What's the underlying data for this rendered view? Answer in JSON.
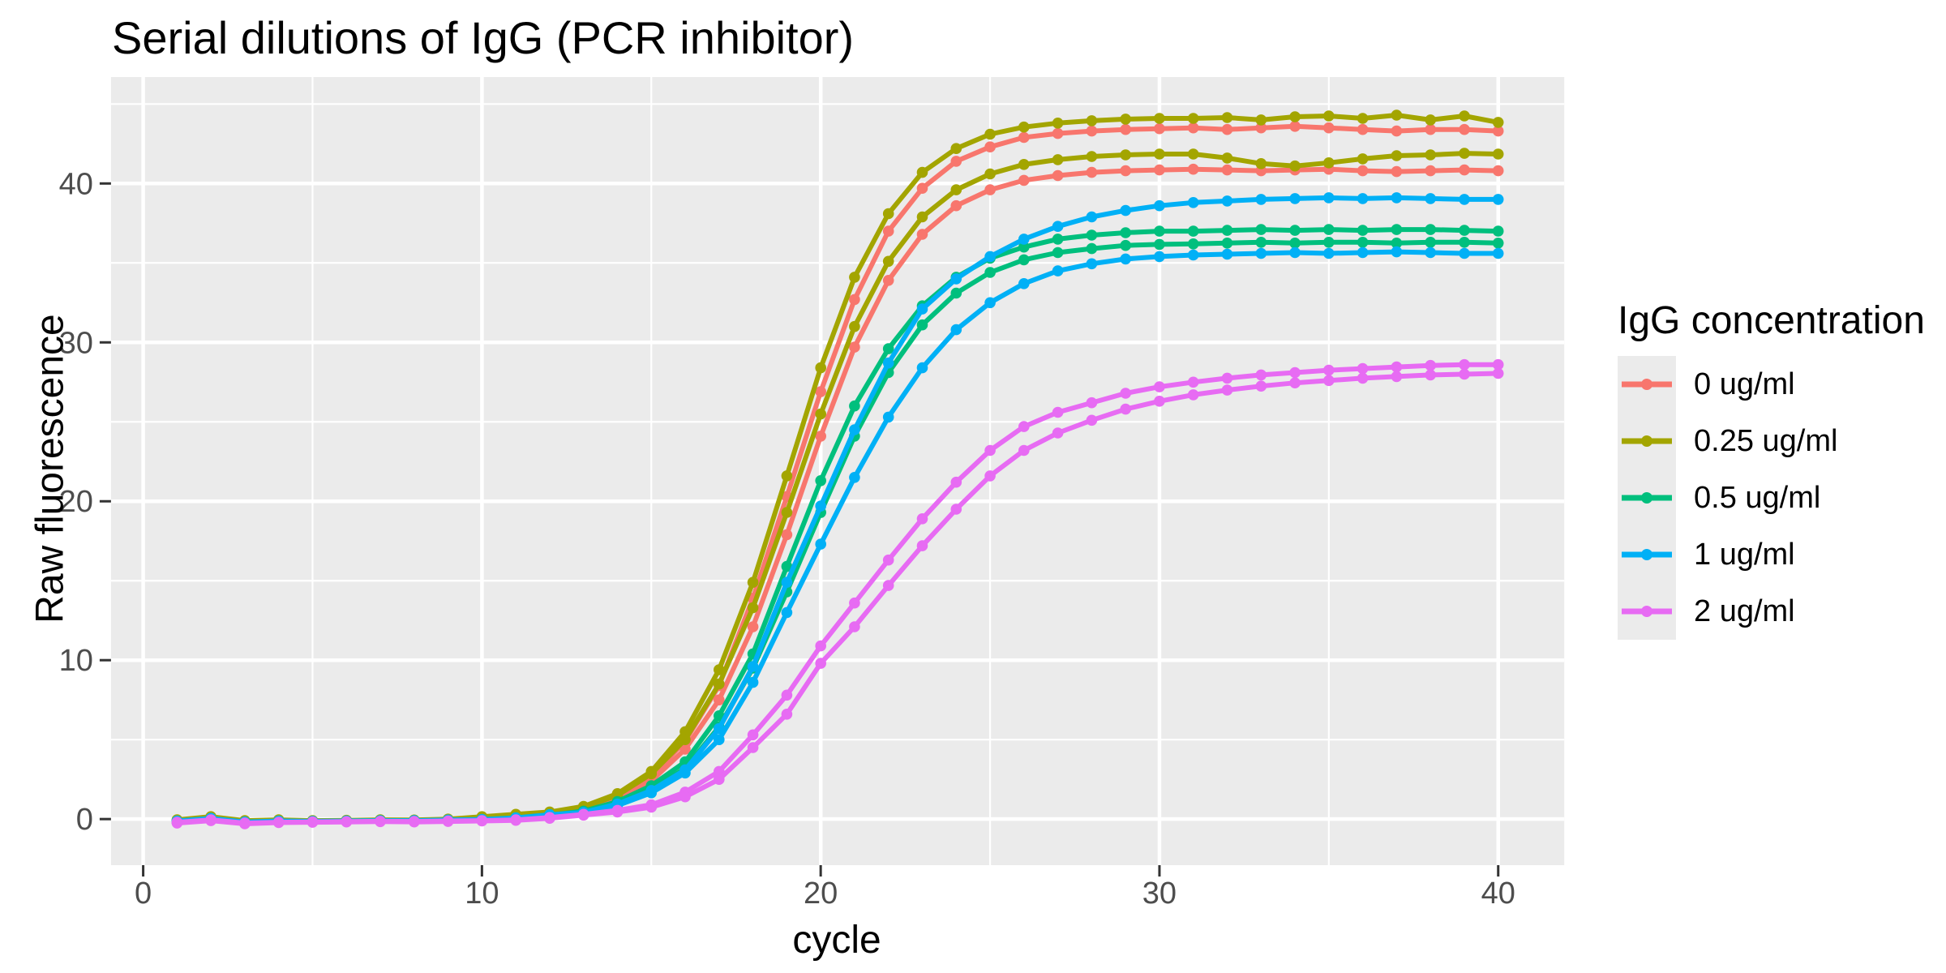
{
  "title": "Serial dilutions of IgG (PCR inhibitor)",
  "axes": {
    "x": {
      "label": "cycle",
      "tick_labels": [
        "0",
        "10",
        "20",
        "30",
        "40"
      ],
      "tick_values": [
        0,
        10,
        20,
        30,
        40
      ],
      "minor_values": [
        5,
        15,
        25,
        35
      ]
    },
    "y": {
      "label": "Raw fluorescence",
      "tick_labels": [
        "0",
        "10",
        "20",
        "30",
        "40"
      ],
      "tick_values": [
        0,
        10,
        20,
        30,
        40
      ],
      "minor_values": [
        5,
        15,
        25,
        35,
        45
      ]
    }
  },
  "legend": {
    "title": "IgG concentration",
    "items": [
      {
        "label": "0 ug/ml",
        "color": "#F8766D"
      },
      {
        "label": "0.25 ug/ml",
        "color": "#A3A500"
      },
      {
        "label": "0.5 ug/ml",
        "color": "#00BF7D"
      },
      {
        "label": "1 ug/ml",
        "color": "#00B0F6"
      },
      {
        "label": "2 ug/ml",
        "color": "#E76BF3"
      }
    ]
  },
  "style": {
    "panel_bg": "#EBEBEB",
    "grid_color": "#FFFFFF",
    "tick_text_color": "#4D4D4D",
    "tick_mark_color": "#333333"
  },
  "chart_data": {
    "type": "line",
    "title": "Serial dilutions of IgG (PCR inhibitor)",
    "xlabel": "cycle",
    "ylabel": "Raw fluorescence",
    "xlim": [
      -0.95,
      41.95
    ],
    "ylim": [
      -2.9,
      46.7
    ],
    "grid": true,
    "legend_position": "right",
    "x": [
      1,
      2,
      3,
      4,
      5,
      6,
      7,
      8,
      9,
      10,
      11,
      12,
      13,
      14,
      15,
      16,
      17,
      18,
      19,
      20,
      21,
      22,
      23,
      24,
      25,
      26,
      27,
      28,
      29,
      30,
      31,
      32,
      33,
      34,
      35,
      36,
      37,
      38,
      39,
      40
    ],
    "series": [
      {
        "name": "0 ug/ml",
        "replicate": 1,
        "color": "#F8766D",
        "values": [
          -0.1,
          0.1,
          -0.15,
          -0.1,
          -0.12,
          -0.1,
          -0.08,
          -0.1,
          -0.05,
          0.0,
          0.1,
          0.3,
          0.7,
          1.45,
          2.7,
          4.9,
          8.4,
          13.9,
          20.3,
          26.9,
          32.7,
          37.0,
          39.7,
          41.4,
          42.3,
          42.9,
          43.15,
          43.3,
          43.4,
          43.45,
          43.5,
          43.4,
          43.5,
          43.6,
          43.5,
          43.4,
          43.3,
          43.4,
          43.4,
          43.3
        ]
      },
      {
        "name": "0 ug/ml",
        "replicate": 2,
        "color": "#F8766D",
        "values": [
          -0.15,
          0.05,
          -0.2,
          -0.12,
          -0.15,
          -0.12,
          -0.1,
          -0.12,
          -0.08,
          -0.02,
          0.05,
          0.25,
          0.6,
          1.25,
          2.4,
          4.4,
          7.5,
          12.1,
          17.9,
          24.1,
          29.7,
          33.9,
          36.8,
          38.6,
          39.6,
          40.2,
          40.5,
          40.7,
          40.8,
          40.85,
          40.9,
          40.85,
          40.8,
          40.85,
          40.9,
          40.8,
          40.75,
          40.8,
          40.85,
          40.8
        ]
      },
      {
        "name": "0.25 ug/ml",
        "replicate": 1,
        "color": "#A3A500",
        "values": [
          -0.05,
          0.15,
          -0.1,
          -0.05,
          -0.1,
          -0.08,
          -0.05,
          -0.06,
          0.0,
          0.15,
          0.3,
          0.45,
          0.8,
          1.6,
          3.0,
          5.5,
          9.4,
          14.9,
          21.6,
          28.4,
          34.1,
          38.1,
          40.7,
          42.2,
          43.1,
          43.55,
          43.8,
          43.95,
          44.05,
          44.1,
          44.1,
          44.15,
          44.0,
          44.2,
          44.25,
          44.1,
          44.3,
          44.0,
          44.25,
          43.85
        ]
      },
      {
        "name": "0.25 ug/ml",
        "replicate": 2,
        "color": "#A3A500",
        "values": [
          -0.1,
          0.1,
          -0.25,
          -0.15,
          -0.12,
          -0.1,
          -0.08,
          -0.08,
          -0.02,
          0.1,
          0.25,
          0.4,
          0.75,
          1.5,
          2.85,
          5.0,
          8.5,
          13.3,
          19.3,
          25.5,
          31.0,
          35.1,
          37.9,
          39.6,
          40.6,
          41.2,
          41.5,
          41.7,
          41.8,
          41.85,
          41.85,
          41.6,
          41.25,
          41.1,
          41.3,
          41.55,
          41.75,
          41.8,
          41.9,
          41.85
        ]
      },
      {
        "name": "0.5 ug/ml",
        "replicate": 1,
        "color": "#00BF7D",
        "values": [
          -0.15,
          0.0,
          -0.2,
          -0.15,
          -0.15,
          -0.12,
          -0.1,
          -0.1,
          -0.08,
          -0.05,
          0.05,
          0.25,
          0.5,
          1.1,
          2.1,
          3.6,
          6.5,
          10.4,
          15.9,
          21.3,
          26.0,
          29.6,
          32.3,
          34.1,
          35.3,
          36.0,
          36.5,
          36.75,
          36.9,
          37.0,
          37.0,
          37.05,
          37.1,
          37.05,
          37.1,
          37.05,
          37.1,
          37.1,
          37.05,
          37.0
        ]
      },
      {
        "name": "0.5 ug/ml",
        "replicate": 2,
        "color": "#00BF7D",
        "values": [
          -0.2,
          -0.05,
          -0.22,
          -0.18,
          -0.16,
          -0.14,
          -0.12,
          -0.12,
          -0.1,
          -0.08,
          0.0,
          0.2,
          0.45,
          0.95,
          1.85,
          3.2,
          5.8,
          9.5,
          14.3,
          19.3,
          24.1,
          28.1,
          31.1,
          33.1,
          34.4,
          35.2,
          35.65,
          35.9,
          36.1,
          36.17,
          36.2,
          36.25,
          36.3,
          36.25,
          36.3,
          36.3,
          36.25,
          36.3,
          36.3,
          36.25
        ]
      },
      {
        "name": "1 ug/ml",
        "replicate": 1,
        "color": "#00B0F6",
        "values": [
          -0.12,
          0.05,
          -0.18,
          -0.12,
          -0.14,
          -0.12,
          -0.1,
          -0.1,
          -0.06,
          -0.02,
          0.08,
          0.28,
          0.42,
          0.95,
          1.8,
          3.1,
          5.7,
          9.6,
          14.9,
          19.7,
          24.5,
          28.7,
          32.1,
          34.0,
          35.4,
          36.5,
          37.3,
          37.9,
          38.3,
          38.6,
          38.8,
          38.9,
          39.0,
          39.05,
          39.1,
          39.05,
          39.1,
          39.05,
          39.0,
          39.0
        ]
      },
      {
        "name": "1 ug/ml",
        "replicate": 2,
        "color": "#00B0F6",
        "values": [
          -0.18,
          -0.02,
          -0.22,
          -0.16,
          -0.16,
          -0.14,
          -0.12,
          -0.14,
          -0.1,
          -0.06,
          0.02,
          0.22,
          0.4,
          0.85,
          1.65,
          2.9,
          5.0,
          8.6,
          13.0,
          17.3,
          21.5,
          25.3,
          28.4,
          30.8,
          32.5,
          33.7,
          34.5,
          34.95,
          35.25,
          35.4,
          35.5,
          35.55,
          35.6,
          35.65,
          35.6,
          35.65,
          35.7,
          35.65,
          35.6,
          35.6
        ]
      },
      {
        "name": "2 ug/ml",
        "replicate": 1,
        "color": "#E76BF3",
        "values": [
          -0.2,
          -0.05,
          -0.25,
          -0.2,
          -0.18,
          -0.16,
          -0.14,
          -0.15,
          -0.12,
          -0.1,
          -0.05,
          0.1,
          0.3,
          0.55,
          0.9,
          1.7,
          3.0,
          5.3,
          7.8,
          10.9,
          13.6,
          16.3,
          18.9,
          21.2,
          23.2,
          24.7,
          25.6,
          26.2,
          26.8,
          27.2,
          27.5,
          27.75,
          27.95,
          28.1,
          28.25,
          28.35,
          28.45,
          28.55,
          28.6,
          28.6
        ]
      },
      {
        "name": "2 ug/ml",
        "replicate": 2,
        "color": "#E76BF3",
        "values": [
          -0.25,
          -0.1,
          -0.3,
          -0.22,
          -0.2,
          -0.18,
          -0.16,
          -0.18,
          -0.15,
          -0.12,
          -0.08,
          0.05,
          0.25,
          0.45,
          0.75,
          1.4,
          2.5,
          4.5,
          6.6,
          9.8,
          12.1,
          14.7,
          17.2,
          19.5,
          21.6,
          23.2,
          24.3,
          25.1,
          25.8,
          26.3,
          26.7,
          27.0,
          27.25,
          27.45,
          27.6,
          27.75,
          27.85,
          27.95,
          28.0,
          28.05
        ]
      }
    ]
  }
}
